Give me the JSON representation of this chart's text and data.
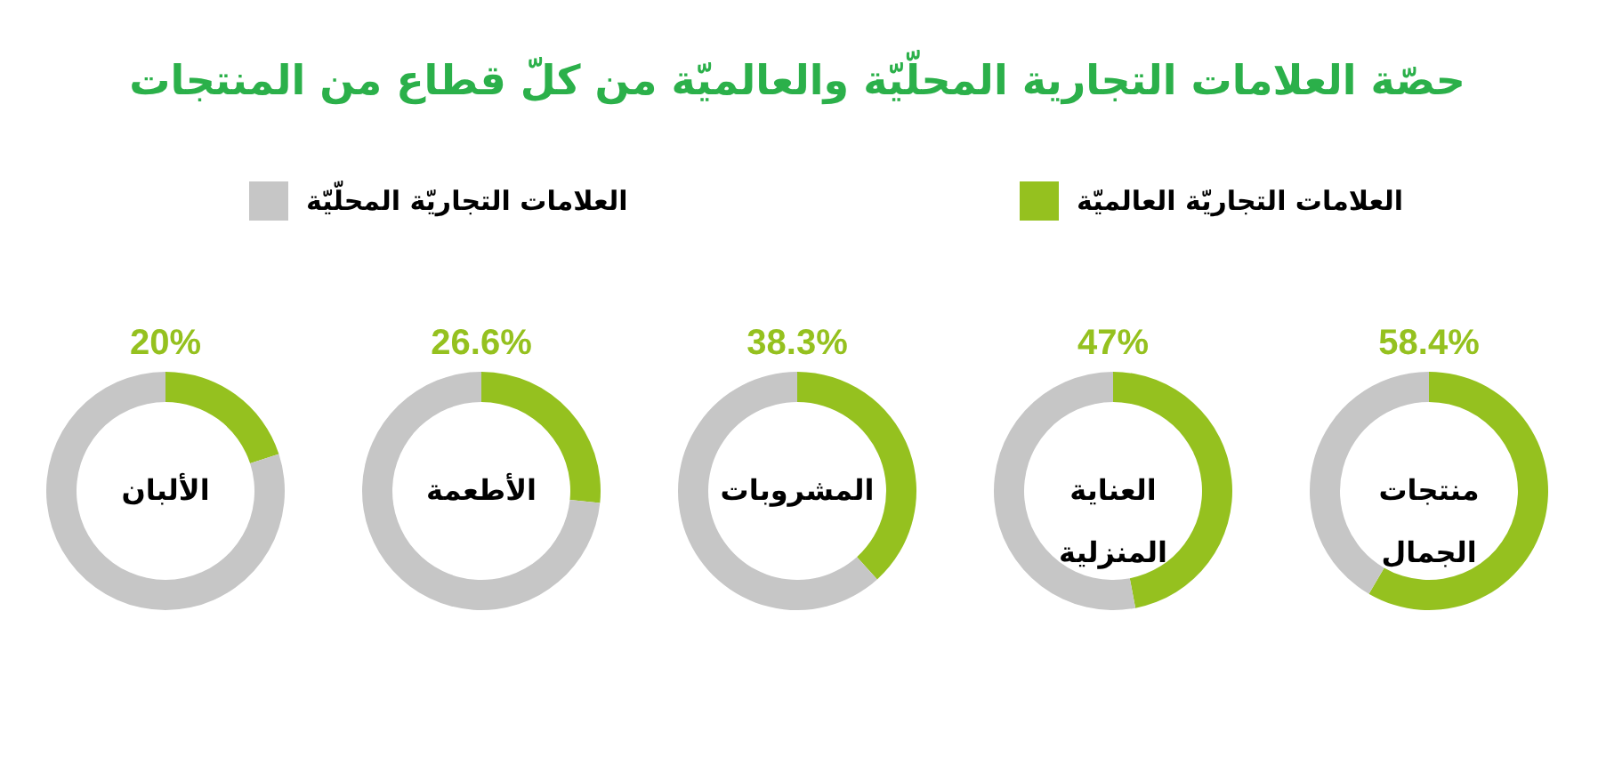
{
  "chart_data": [
    {
      "type": "other",
      "title": "حصّة العلامات التجارية المحلّيّة والعالميّة من كلّ قطاع من المنتجات"
    },
    {
      "type": "donut",
      "title": "الألبان",
      "categories": [
        "العلامات التجاريّة العالميّة",
        "العلامات التجاريّة المحلّيّة"
      ],
      "values": [
        20,
        80
      ],
      "colors": [
        "#95c11f",
        "#c6c6c6"
      ],
      "value_labels": [
        "20%",
        null
      ],
      "legend": "top"
    },
    {
      "type": "donut",
      "title": "الأطعمة",
      "categories": [
        null,
        null
      ],
      "values": [
        26.6,
        73.4
      ],
      "colors": [
        "#95c11f",
        "#c6c6c6"
      ],
      "value_labels": [
        "26.6%",
        null
      ]
    },
    {
      "type": "donut",
      "title": "المشروبات",
      "categories": [
        null,
        null
      ],
      "values": [
        38.3,
        61.7
      ],
      "colors": [
        "#95c11f",
        "#c6c6c6"
      ],
      "value_labels": [
        "38.3%",
        null
      ]
    },
    {
      "type": "donut",
      "title": "العناية المنزلية",
      "categories": [
        null,
        null
      ],
      "values": [
        47,
        53
      ],
      "colors": [
        "#95c11f",
        "#c6c6c6"
      ],
      "value_labels": [
        "47%",
        null
      ]
    },
    {
      "type": "donut",
      "title": "منتجات الجمال",
      "categories": [
        null,
        null
      ],
      "values": [
        58.4,
        41.6
      ],
      "colors": [
        "#95c11f",
        "#c6c6c6"
      ],
      "value_labels": [
        "58.4%",
        null
      ]
    }
  ]
}
